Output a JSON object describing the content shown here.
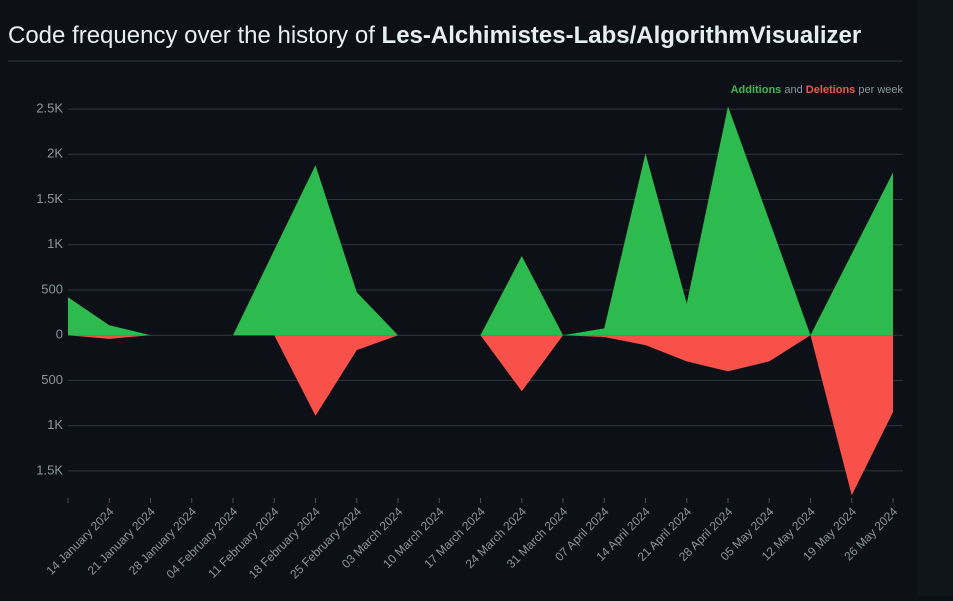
{
  "header": {
    "title": "Code frequency over the history of",
    "repo": "Les-Alchimistes-Labs/AlgorithmVisualizer"
  },
  "chart_data": {
    "type": "area",
    "legend_text": {
      "joiner": "and",
      "suffix": "per week"
    },
    "categories": [
      null,
      "14 January 2024",
      "21 January 2024",
      "28 January 2024",
      "04 February 2024",
      "11 February 2024",
      "18 February 2024",
      "25 February 2024",
      "03 March 2024",
      "10 March 2024",
      "17 March 2024",
      "24 March 2024",
      "31 March 2024",
      "07 April 2024",
      "14 April 2024",
      "21 April 2024",
      "28 April 2024",
      "05 May 2024",
      "12 May 2024",
      "19 May 2024",
      "26 May 2024"
    ],
    "series": [
      {
        "name": "Additions",
        "color": "#2dba4e",
        "values": [
          420,
          110,
          0,
          0,
          0,
          940,
          1880,
          475,
          0,
          0,
          0,
          875,
          0,
          75,
          2010,
          350,
          2530,
          1270,
          0,
          900,
          1800
        ]
      },
      {
        "name": "Deletions",
        "color": "#f85149",
        "values": [
          0,
          -40,
          0,
          0,
          0,
          0,
          -890,
          -165,
          0,
          0,
          0,
          -620,
          0,
          -20,
          -110,
          -290,
          -400,
          -290,
          0,
          -1770,
          -850
        ]
      }
    ],
    "ylim": [
      -1800,
      2700
    ],
    "yticks": [
      {
        "value": 2500,
        "label": "2.5K"
      },
      {
        "value": 2000,
        "label": "2K"
      },
      {
        "value": 1500,
        "label": "1.5K"
      },
      {
        "value": 1000,
        "label": "1K"
      },
      500,
      0,
      {
        "value": -500,
        "label": "500"
      },
      {
        "value": -1000,
        "label": "1K"
      },
      {
        "value": -1500,
        "label": "1.5K"
      }
    ],
    "grid": true
  }
}
